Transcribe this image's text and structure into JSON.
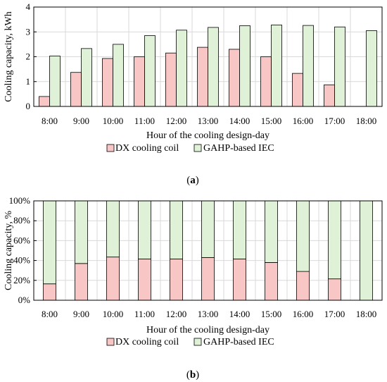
{
  "colors": {
    "dx": "#f9c6c6",
    "iec": "#dff2d8",
    "stroke": "#000000",
    "grid": "#d9d9d9"
  },
  "chart_data": [
    {
      "type": "bar",
      "caption_letter": "a",
      "categories": [
        "8:00",
        "9:00",
        "10:00",
        "11:00",
        "12:00",
        "13:00",
        "14:00",
        "15:00",
        "16:00",
        "17:00",
        "18:00"
      ],
      "series": [
        {
          "name": "DX cooling coil",
          "values": [
            0.4,
            1.37,
            1.93,
            2.0,
            2.15,
            2.38,
            2.3,
            2.0,
            1.33,
            0.87,
            0.0
          ]
        },
        {
          "name": "GAHP-based IEC",
          "values": [
            2.03,
            2.33,
            2.5,
            2.85,
            3.07,
            3.18,
            3.25,
            3.28,
            3.26,
            3.2,
            3.05
          ]
        }
      ],
      "xlabel": "Hour of the cooling design-day",
      "ylabel": "Cooling capacity, kWh",
      "ylim": [
        0,
        4
      ],
      "yticks": [
        "0",
        "1",
        "2",
        "3",
        "4"
      ],
      "grid": true,
      "legend_position": "bottom"
    },
    {
      "type": "bar",
      "stacked": true,
      "percent": true,
      "caption_letter": "b",
      "categories": [
        "8:00",
        "9:00",
        "10:00",
        "11:00",
        "12:00",
        "13:00",
        "14:00",
        "15:00",
        "16:00",
        "17:00",
        "18:00"
      ],
      "series": [
        {
          "name": "DX cooling coil",
          "values": [
            16.5,
            37,
            43.5,
            41.5,
            41.5,
            43,
            41.5,
            38,
            29,
            21.5,
            0
          ]
        },
        {
          "name": "GAHP-based IEC",
          "values": [
            83.5,
            63,
            56.5,
            58.5,
            58.5,
            57,
            58.5,
            62,
            71,
            78.5,
            100
          ]
        }
      ],
      "xlabel": "Hour of the cooling design-day",
      "ylabel": "Cooling capacity, %",
      "ylim": [
        0,
        100
      ],
      "yticks": [
        "0%",
        "20%",
        "40%",
        "60%",
        "80%",
        "100%"
      ],
      "grid": true,
      "legend_position": "bottom"
    }
  ]
}
